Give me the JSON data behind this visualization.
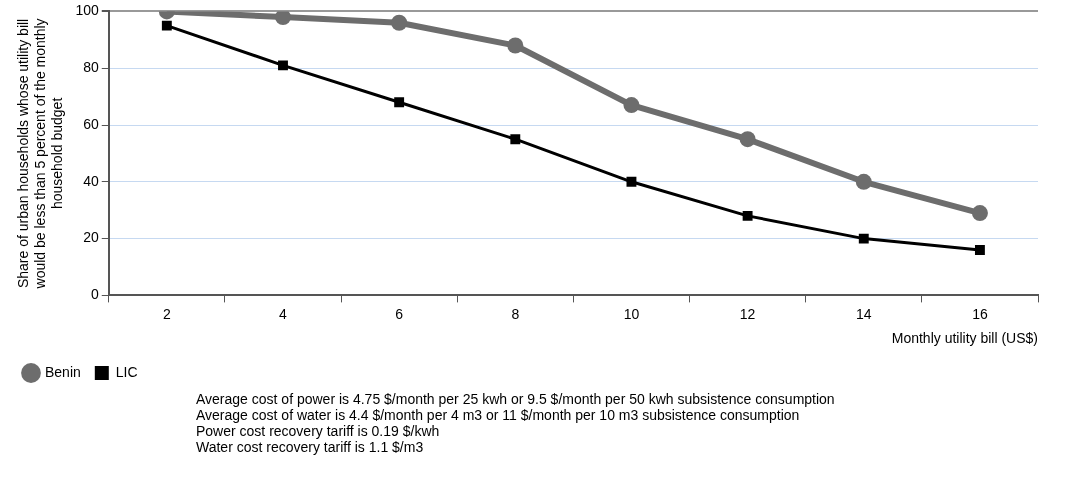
{
  "chart_data": {
    "type": "line",
    "categories": [
      "2",
      "4",
      "6",
      "8",
      "10",
      "12",
      "14",
      "16"
    ],
    "series": [
      {
        "name": "Benin",
        "color": "#6d6d6d",
        "marker": "circle",
        "values": [
          100,
          98,
          96,
          88,
          67,
          55,
          40,
          29
        ]
      },
      {
        "name": "LIC",
        "color": "#000000",
        "marker": "square",
        "values": [
          95,
          81,
          68,
          55,
          40,
          28,
          20,
          16
        ]
      }
    ],
    "xlabel": "Monthly utility bill (US$)",
    "ylabel": "Share of urban households whose utility bill would be less than 5 percent of the monthly household budget",
    "ylim": [
      0,
      100
    ],
    "yticks": [
      0,
      20,
      40,
      60,
      80,
      100
    ],
    "grid": "y",
    "legend": "bottom left",
    "annotations": [
      "Average cost of power is 4.75 $/month per 25 kwh or 9.5 $/month per 50 kwh subsistence consumption",
      "Average cost of water is 4.4 $/month per 4 m3 or 11 $/month per 10 m3 subsistence consumption",
      "Power cost recovery tariff is 0.19 $/kwh",
      "Water cost recovery tariff is 1.1 $/m3"
    ]
  }
}
